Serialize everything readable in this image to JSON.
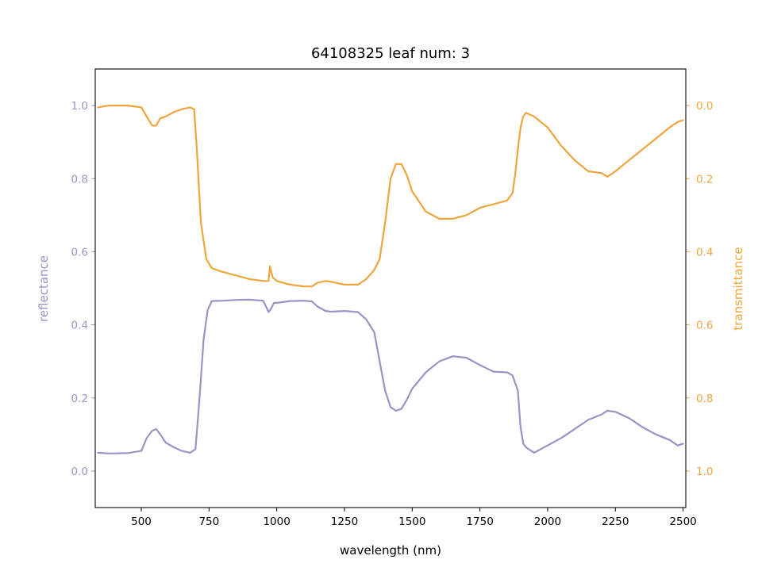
{
  "chart_data": {
    "type": "line",
    "title": "64108325 leaf num: 3",
    "xlabel": "wavelength (nm)",
    "ylabel_left": "reflectance",
    "ylabel_right": "transmittance",
    "xlim": [
      330,
      2510
    ],
    "ylim_left": [
      -0.1,
      1.1
    ],
    "ylim_right": [
      1.1,
      -0.1
    ],
    "right_axis_inverted": true,
    "grid": false,
    "legend": "none",
    "x_ticks": [
      500,
      750,
      1000,
      1250,
      1500,
      1750,
      2000,
      2250,
      2500
    ],
    "x_tick_labels": [
      "500",
      "750",
      "1000",
      "1250",
      "1500",
      "1750",
      "2000",
      "2250",
      "2500"
    ],
    "left_ticks": [
      0.0,
      0.2,
      0.4,
      0.6,
      0.8,
      1.0
    ],
    "left_tick_labels": [
      "0.0",
      "0.2",
      "0.4",
      "0.6",
      "0.8",
      "1.0"
    ],
    "right_ticks": [
      0.0,
      0.2,
      0.4,
      0.6,
      0.8,
      1.0
    ],
    "right_tick_labels": [
      "0.0",
      "0.2",
      "0.4",
      "0.6",
      "0.8",
      "1.0"
    ],
    "colors": {
      "reflectance": "#9a94c6",
      "transmittance": "#efa53f"
    },
    "series": [
      {
        "axis": "left",
        "x": [
          340,
          380,
          450,
          500,
          520,
          540,
          555,
          570,
          590,
          620,
          650,
          680,
          700,
          715,
          730,
          745,
          760,
          800,
          850,
          900,
          950,
          970,
          980,
          990,
          1000,
          1050,
          1100,
          1130,
          1150,
          1180,
          1200,
          1250,
          1300,
          1330,
          1360,
          1380,
          1400,
          1420,
          1440,
          1460,
          1480,
          1500,
          1550,
          1600,
          1650,
          1700,
          1750,
          1800,
          1850,
          1870,
          1890,
          1900,
          1910,
          1920,
          1950,
          2000,
          2050,
          2100,
          2150,
          2200,
          2220,
          2250,
          2300,
          2350,
          2400,
          2450,
          2480,
          2500
        ],
        "y": [
          0.05,
          0.048,
          0.049,
          0.055,
          0.09,
          0.11,
          0.115,
          0.1,
          0.078,
          0.065,
          0.055,
          0.05,
          0.06,
          0.2,
          0.36,
          0.44,
          0.465,
          0.466,
          0.468,
          0.469,
          0.466,
          0.435,
          0.445,
          0.46,
          0.46,
          0.465,
          0.466,
          0.464,
          0.45,
          0.438,
          0.436,
          0.438,
          0.435,
          0.415,
          0.38,
          0.3,
          0.22,
          0.175,
          0.165,
          0.17,
          0.195,
          0.225,
          0.27,
          0.3,
          0.314,
          0.31,
          0.29,
          0.272,
          0.27,
          0.262,
          0.22,
          0.12,
          0.075,
          0.065,
          0.05,
          0.07,
          0.09,
          0.115,
          0.14,
          0.155,
          0.165,
          0.162,
          0.145,
          0.12,
          0.1,
          0.085,
          0.07,
          0.075
        ]
      },
      {
        "axis": "right",
        "x": [
          340,
          380,
          450,
          500,
          520,
          540,
          555,
          570,
          590,
          620,
          650,
          680,
          695,
          705,
          720,
          740,
          760,
          800,
          850,
          900,
          950,
          970,
          975,
          985,
          1000,
          1050,
          1100,
          1130,
          1150,
          1180,
          1200,
          1250,
          1300,
          1330,
          1360,
          1380,
          1400,
          1420,
          1440,
          1460,
          1480,
          1500,
          1550,
          1600,
          1650,
          1700,
          1750,
          1800,
          1850,
          1870,
          1880,
          1890,
          1900,
          1910,
          1920,
          1950,
          2000,
          2050,
          2100,
          2150,
          2200,
          2220,
          2250,
          2300,
          2350,
          2400,
          2450,
          2480,
          2500
        ],
        "y": [
          0.005,
          0.0,
          0.0,
          0.005,
          0.03,
          0.055,
          0.055,
          0.035,
          0.03,
          0.018,
          0.01,
          0.005,
          0.01,
          0.12,
          0.32,
          0.42,
          0.445,
          0.455,
          0.465,
          0.475,
          0.48,
          0.48,
          0.44,
          0.47,
          0.48,
          0.49,
          0.495,
          0.495,
          0.485,
          0.48,
          0.482,
          0.49,
          0.49,
          0.475,
          0.45,
          0.42,
          0.32,
          0.2,
          0.16,
          0.16,
          0.19,
          0.235,
          0.29,
          0.31,
          0.31,
          0.3,
          0.28,
          0.27,
          0.26,
          0.24,
          0.19,
          0.12,
          0.06,
          0.03,
          0.02,
          0.03,
          0.06,
          0.11,
          0.15,
          0.18,
          0.185,
          0.195,
          0.18,
          0.15,
          0.12,
          0.09,
          0.06,
          0.045,
          0.04
        ]
      }
    ]
  }
}
